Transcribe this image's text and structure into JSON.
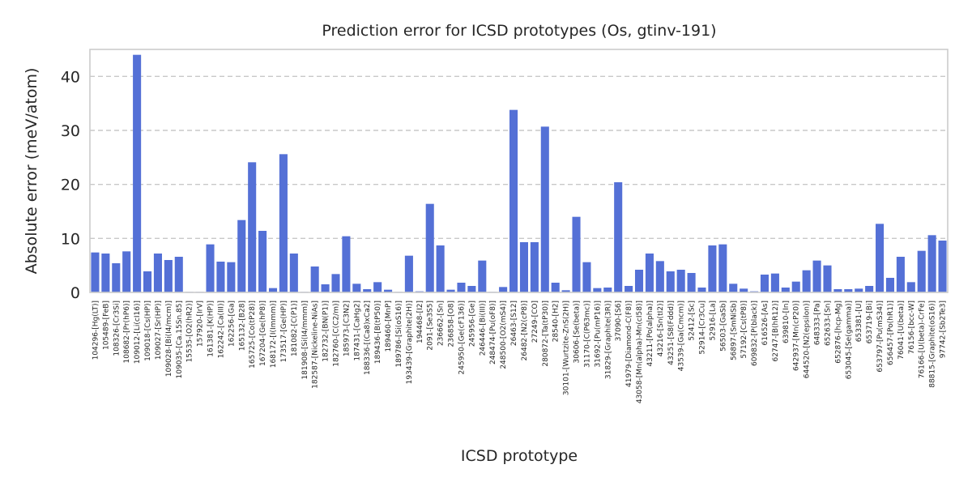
{
  "chart_data": {
    "type": "bar",
    "title": "Prediction error for ICSD prototypes (Os, gtinv-191)",
    "xlabel": "ICSD prototype",
    "ylabel": "Absolute error (meV/atom)",
    "ylim": [
      0,
      45
    ],
    "yticks": [
      0,
      10,
      20,
      30,
      40
    ],
    "grid": "horizontal dashed",
    "bar_color": "#5470d6",
    "categories": [
      "104296-[Hg(LT)]",
      "105489-[FeB]",
      "108326-[Cr3Si]",
      "108682-[Pr(hP6)]",
      "109012-[Li(cI16)]",
      "109018-[Cs(HP)]",
      "109027-[Sr(HP)]",
      "109028-[Bi(I4/mcm)]",
      "109035-[Ca.15Sn.85]",
      "15535-[O2(hR2)]",
      "157920-[IrV]",
      "161381-[K(HP)]",
      "162242-[Ca(III)]",
      "162256-[Ga]",
      "165132-[B28]",
      "165725-[Co(tP28)]",
      "167204-[Ge(hP8)]",
      "168172-[I(Immm)]",
      "173517-[Ge(HP)]",
      "181082-[C(P1)]",
      "181908-[Si(I4/mmm)]",
      "182587-[Nickeline-NiAs]",
      "182732-[BN(P1)]",
      "182760-[C(C2/m)]",
      "185973-[C3N2]",
      "187431-[CaHg2]",
      "188336-[(Ca8)xCa2]",
      "189436-[B(tP50)]",
      "189460-[MnP]",
      "189786-[Si(oS16)]",
      "193439-[Graphite(2H)]",
      "194468-[I2]",
      "2091-[Se3S5]",
      "236662-[Sn]",
      "236858-[O8]",
      "245950-[Ge(cF136)]",
      "245956-[Ge]",
      "246446-[Bi(III)]",
      "248474-[Pu(oF8)]",
      "248500-[O2(mS4)]",
      "26463-[S12]",
      "26482-[N2(cP8)]",
      "27249-[CO]",
      "280872-[Ta(tP30)]",
      "28540-[H2]",
      "30101-[Wurtzite-ZnS(2H)]",
      "30606-[Se(beta)]",
      "31170-[C(P63mc)]",
      "31692-[Pu(mP16)]",
      "31829-[Graphite(3R)]",
      "37090-[S6]",
      "41979-[Diamond-C(F8)]",
      "43058-[Mn(alpha)-Mn(cI58)]",
      "43211-[Po(alpha)]",
      "43216-[Sn(tI2)]",
      "43251-[S8(Fddd)]",
      "43539-[Ga(Cmcm)]",
      "52412-[Sc]",
      "52914-[Cr3Cu]",
      "52916-[La]",
      "56503-[GaSb]",
      "56897-[SmNiSb]",
      "57192-[Cs(tP8)]",
      "609832-[P(black)]",
      "616526-[As]",
      "62747-[B(hR12)]",
      "639810-[In]",
      "642937-[Mn(cP20)]",
      "644520-[N2(epsilon)]",
      "648333-[Pa]",
      "652633-[Sn]",
      "652876-[hcp-Mg]",
      "653045-[Se(gamma)]",
      "653381-[U]",
      "653719-[Bi]",
      "653797-[Pu(mS34)]",
      "656457-[Po(hR1)]",
      "76041-[U(beta)]",
      "76156-[bcc-W]",
      "76166-[U(beta)-CrFe]",
      "88815-[Graphite(oS16)]",
      "97742-[Sb2Te3]"
    ],
    "values": [
      7.4,
      7.2,
      5.4,
      7.6,
      44.0,
      3.9,
      7.2,
      6.0,
      6.6,
      0.1,
      0.1,
      8.9,
      5.7,
      5.6,
      13.4,
      24.1,
      11.4,
      0.8,
      25.6,
      7.2,
      0.1,
      4.8,
      1.5,
      3.4,
      10.4,
      1.6,
      0.6,
      1.9,
      0.5,
      0.1,
      6.8,
      0.2,
      16.4,
      8.7,
      0.5,
      1.8,
      1.2,
      5.9,
      0.1,
      1.0,
      33.8,
      9.3,
      9.3,
      30.7,
      1.8,
      0.4,
      14.0,
      5.6,
      0.8,
      0.9,
      20.4,
      1.2,
      4.2,
      7.2,
      5.8,
      3.9,
      4.2,
      3.6,
      0.9,
      8.7,
      8.9,
      1.6,
      0.7,
      0.2,
      3.3,
      3.5,
      0.9,
      2.0,
      4.1,
      5.9,
      5.0,
      0.6,
      0.6,
      0.7,
      1.2,
      12.7,
      2.7,
      6.6,
      1.9,
      7.7,
      10.6,
      9.6
    ]
  }
}
